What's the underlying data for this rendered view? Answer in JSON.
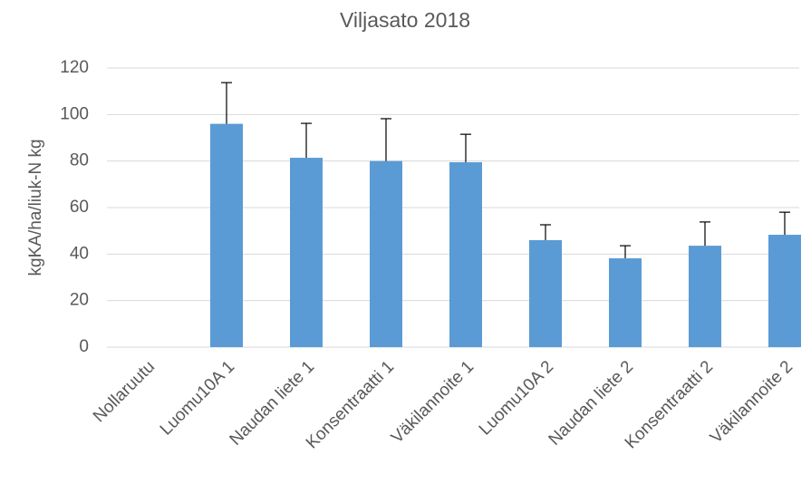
{
  "chart_data": {
    "type": "bar",
    "title": "Viljasato 2018",
    "y_label": "kgKA/ha/liuk-N kg",
    "categories": [
      "Nollaruutu",
      "Luomu10A 1",
      "Naudan liete 1",
      "Konsentraatti 1",
      "Väkilannoite 1",
      "Luomu10A 2",
      "Naudan liete 2",
      "Konsentraatti 2",
      "Väkilannoite 2"
    ],
    "values": [
      0,
      96,
      81.4,
      80,
      79.5,
      46,
      38.2,
      43.6,
      48.3
    ],
    "errors": [
      null,
      17.7,
      14.8,
      18.2,
      12,
      6.6,
      5.4,
      10.2,
      9.7
    ],
    "color": "#5b9bd5",
    "ylim": [
      0,
      120
    ],
    "yticks": [
      0,
      20,
      40,
      60,
      80,
      100,
      120
    ],
    "grid": true
  }
}
